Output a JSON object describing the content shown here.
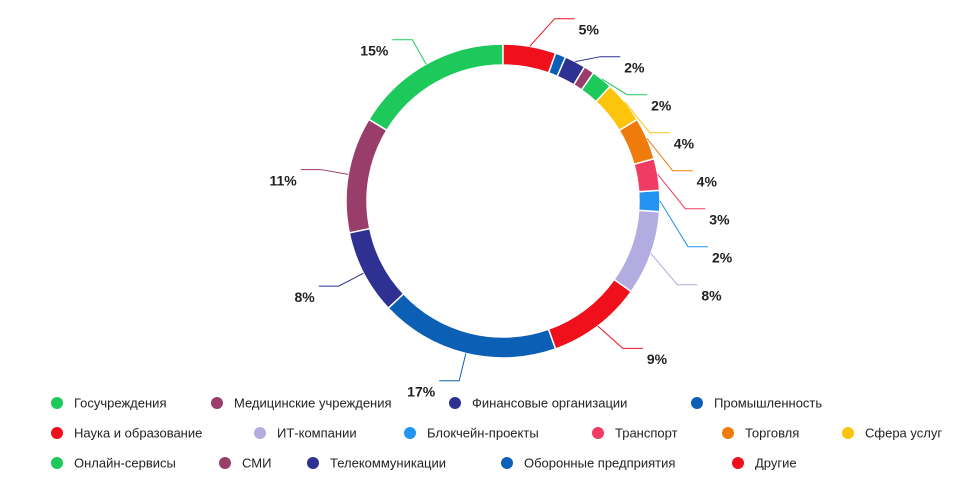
{
  "chart_data": {
    "type": "donut",
    "categories": [
      "Госучреждения",
      "Медицинские учреждения",
      "Финансовые организации",
      "Промышленность",
      "Наука и образование",
      "ИТ-компании",
      "Блокчейн-проекты",
      "Транспорт",
      "Торговля",
      "Сфера услуг",
      "Онлайн-сервисы",
      "СМИ",
      "Телекоммуникации",
      "Оборонные предприятия",
      "Другие"
    ],
    "values": [
      15,
      11,
      8,
      17,
      9,
      8,
      2,
      3,
      4,
      4,
      2,
      1,
      2,
      1,
      5
    ],
    "value_labels": [
      "15%",
      "11%",
      "8%",
      "17%",
      "9%",
      "8%",
      "2%",
      "3%",
      "4%",
      "4%",
      "2%",
      null,
      "2%",
      null,
      "5%"
    ],
    "colors": [
      "#1dc95a",
      "#993d6b",
      "#2f3192",
      "#0b60b5",
      "#f0101c",
      "#b2ace0",
      "#2394f2",
      "#f03b62",
      "#f07b0d",
      "#fcc40b",
      "#1dc95a",
      "#993d6b",
      "#2f3192",
      "#0b60b5",
      "#f0101c"
    ],
    "legend": "bottom"
  }
}
